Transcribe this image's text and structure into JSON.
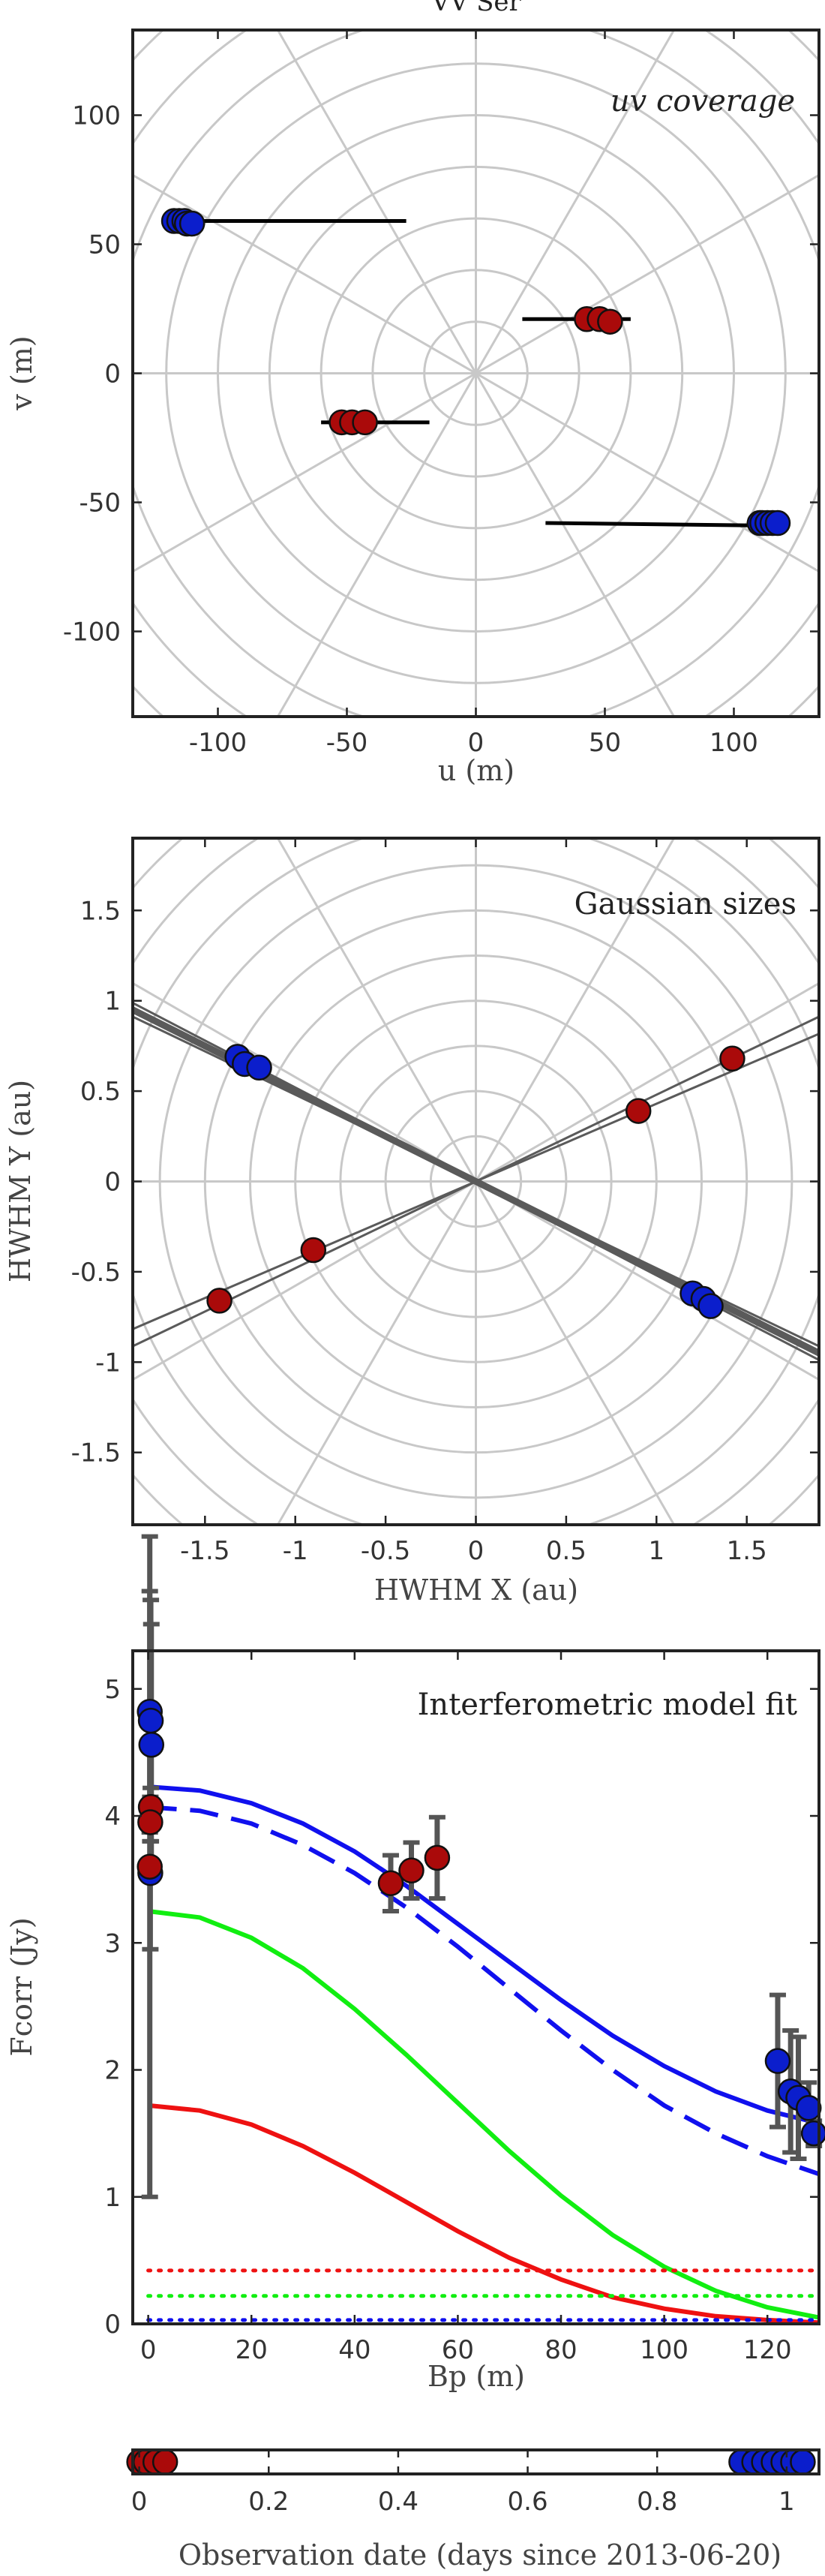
{
  "figure_title": "VV Ser",
  "chart_data": [
    {
      "type": "scatter",
      "name": "uv-coverage",
      "annotation": "uv coverage",
      "xlabel": "u (m)",
      "ylabel": "v (m)",
      "xlim": [
        -133,
        133
      ],
      "ylim": [
        -133,
        133
      ],
      "xticks": [
        -100,
        -50,
        0,
        50,
        100
      ],
      "yticks": [
        -100,
        -50,
        0,
        50,
        100
      ],
      "xticklabels": [
        "-100",
        "-50",
        "0",
        "50",
        "100"
      ],
      "yticklabels": [
        "-100",
        "-50",
        "0",
        "50",
        "100"
      ],
      "polar_grid": {
        "radius_step": 20,
        "radius_max": 200,
        "angle_step_deg": 30
      },
      "tracks": [
        {
          "x1": -112,
          "y1": 59,
          "x2": -27,
          "y2": 59
        },
        {
          "x1": 27,
          "y1": -58,
          "x2": 112,
          "y2": -59
        },
        {
          "x1": 18,
          "y1": 21,
          "x2": 60,
          "y2": 21
        },
        {
          "x1": -60,
          "y1": -19,
          "x2": -18,
          "y2": -19
        }
      ],
      "series": [
        {
          "name": "blue",
          "color": "#0b1ecc",
          "points": [
            [
              -117,
              59
            ],
            [
              -115,
              59
            ],
            [
              -113,
              59
            ],
            [
              -112,
              58
            ],
            [
              -110,
              58
            ],
            [
              110,
              -58
            ],
            [
              111,
              -58
            ],
            [
              113,
              -58
            ],
            [
              115,
              -58
            ],
            [
              117,
              -58
            ]
          ]
        },
        {
          "name": "red",
          "color": "#aa0a0a",
          "points": [
            [
              43,
              21
            ],
            [
              48,
              21
            ],
            [
              52,
              20
            ],
            [
              -52,
              -19
            ],
            [
              -48,
              -19
            ],
            [
              -43,
              -19
            ]
          ]
        }
      ]
    },
    {
      "type": "scatter",
      "name": "gaussian-sizes",
      "annotation": "Gaussian sizes",
      "xlabel": "HWHM X (au)",
      "ylabel": "HWHM Y (au)",
      "xlim": [
        -1.9,
        1.9
      ],
      "ylim": [
        -1.9,
        1.9
      ],
      "xticks": [
        -1.5,
        -1,
        -0.5,
        0,
        0.5,
        1,
        1.5
      ],
      "yticks": [
        -1.5,
        -1,
        -0.5,
        0,
        0.5,
        1,
        1.5
      ],
      "xticklabels": [
        "-1.5",
        "-1",
        "-0.5",
        "0",
        "0.5",
        "1",
        "1.5"
      ],
      "yticklabels": [
        "-1.5",
        "-1",
        "-0.5",
        "0",
        "0.5",
        "1",
        "1.5"
      ],
      "polar_grid": {
        "radius_step": 0.25,
        "radius_max": 3,
        "angle_step_deg": 30
      },
      "lines": [
        {
          "slope": -0.5,
          "width": 9
        },
        {
          "slope": -0.48,
          "width": 3
        },
        {
          "slope": -0.52,
          "width": 3
        },
        {
          "slope": 0.43,
          "width": 3
        },
        {
          "slope": 0.48,
          "width": 3
        }
      ],
      "series": [
        {
          "name": "blue",
          "color": "#0b1ecc",
          "points": [
            [
              -1.32,
              0.69
            ],
            [
              -1.28,
              0.65
            ],
            [
              -1.2,
              0.63
            ],
            [
              1.2,
              -0.62
            ],
            [
              1.26,
              -0.65
            ],
            [
              1.3,
              -0.69
            ]
          ]
        },
        {
          "name": "red",
          "color": "#aa0a0a",
          "points": [
            [
              -1.42,
              -0.66
            ],
            [
              -0.9,
              -0.38
            ],
            [
              0.9,
              0.39
            ],
            [
              1.42,
              0.68
            ]
          ]
        }
      ]
    },
    {
      "type": "line",
      "name": "interferometric-model-fit",
      "annotation": "Interferometric model fit",
      "xlabel": "Bp (m)",
      "ylabel": "Fcorr (Jy)",
      "xlim": [
        -3,
        130
      ],
      "ylim": [
        0,
        5.3
      ],
      "xticks": [
        0,
        20,
        40,
        60,
        80,
        100,
        120
      ],
      "yticks": [
        0,
        1,
        2,
        3,
        4,
        5
      ],
      "xticklabels": [
        "0",
        "20",
        "40",
        "60",
        "80",
        "100",
        "120"
      ],
      "yticklabels": [
        "0",
        "1",
        "2",
        "3",
        "4",
        "5"
      ],
      "curves": [
        {
          "name": "blue-solid",
          "color": "#1010ee",
          "style": "solid",
          "points": [
            [
              0,
              4.23
            ],
            [
              10,
              4.2
            ],
            [
              20,
              4.1
            ],
            [
              30,
              3.94
            ],
            [
              40,
              3.72
            ],
            [
              50,
              3.45
            ],
            [
              60,
              3.15
            ],
            [
              70,
              2.85
            ],
            [
              80,
              2.55
            ],
            [
              90,
              2.27
            ],
            [
              100,
              2.03
            ],
            [
              110,
              1.83
            ],
            [
              120,
              1.68
            ],
            [
              130,
              1.58
            ]
          ]
        },
        {
          "name": "blue-dashed",
          "color": "#1010ee",
          "style": "dashed",
          "points": [
            [
              0,
              4.07
            ],
            [
              10,
              4.04
            ],
            [
              20,
              3.94
            ],
            [
              30,
              3.77
            ],
            [
              40,
              3.55
            ],
            [
              50,
              3.28
            ],
            [
              60,
              2.97
            ],
            [
              70,
              2.64
            ],
            [
              80,
              2.31
            ],
            [
              90,
              2.0
            ],
            [
              100,
              1.72
            ],
            [
              110,
              1.5
            ],
            [
              120,
              1.32
            ],
            [
              130,
              1.18
            ]
          ]
        },
        {
          "name": "green",
          "color": "#11ee11",
          "style": "solid",
          "points": [
            [
              0,
              3.25
            ],
            [
              10,
              3.2
            ],
            [
              20,
              3.04
            ],
            [
              30,
              2.8
            ],
            [
              40,
              2.48
            ],
            [
              50,
              2.12
            ],
            [
              60,
              1.74
            ],
            [
              70,
              1.36
            ],
            [
              80,
              1.01
            ],
            [
              90,
              0.7
            ],
            [
              100,
              0.45
            ],
            [
              110,
              0.26
            ],
            [
              120,
              0.13
            ],
            [
              130,
              0.05
            ]
          ]
        },
        {
          "name": "red",
          "color": "#ee1111",
          "style": "solid",
          "points": [
            [
              0,
              1.72
            ],
            [
              10,
              1.68
            ],
            [
              20,
              1.57
            ],
            [
              30,
              1.4
            ],
            [
              40,
              1.19
            ],
            [
              50,
              0.96
            ],
            [
              60,
              0.73
            ],
            [
              70,
              0.52
            ],
            [
              80,
              0.35
            ],
            [
              90,
              0.21
            ],
            [
              100,
              0.12
            ],
            [
              110,
              0.06
            ],
            [
              120,
              0.03
            ],
            [
              130,
              0.01
            ]
          ]
        },
        {
          "name": "red-dotted",
          "color": "#ee1111",
          "style": "dotted",
          "points": [
            [
              0,
              0.42
            ],
            [
              130,
              0.42
            ]
          ]
        },
        {
          "name": "green-dotted",
          "color": "#11ee11",
          "style": "dotted",
          "points": [
            [
              0,
              0.22
            ],
            [
              130,
              0.22
            ]
          ]
        },
        {
          "name": "blue-dotted",
          "color": "#1010ee",
          "style": "dotted",
          "points": [
            [
              0,
              0.03
            ],
            [
              130,
              0.03
            ]
          ]
        }
      ],
      "series": [
        {
          "name": "blue",
          "color": "#0b1ecc",
          "points": [
            [
              0.3,
              4.82,
              0.95
            ],
            [
              0.5,
              4.75,
              0.95
            ],
            [
              0.6,
              4.56,
              0.95
            ],
            [
              0.4,
              3.55,
              0.6
            ]
          ]
        },
        {
          "name": "red",
          "color": "#aa0a0a",
          "points": [
            [
              0.5,
              4.07,
              0.15
            ],
            [
              0.4,
              3.95,
              0.15
            ],
            [
              0.3,
              3.6,
              2.6
            ],
            [
              47,
              3.47,
              0.22
            ],
            [
              51,
              3.57,
              0.22
            ],
            [
              56,
              3.67,
              0.32
            ]
          ]
        },
        {
          "name": "blue",
          "color": "#0b1ecc",
          "points": [
            [
              122,
              2.07,
              0.52
            ],
            [
              124.5,
              1.83,
              0.48
            ],
            [
              126,
              1.78,
              0.48
            ],
            [
              128,
              1.7,
              0.2
            ],
            [
              129,
              1.5,
              0.1
            ]
          ]
        }
      ]
    },
    {
      "type": "scatter",
      "name": "observation-timeline",
      "xlabel": "Observation date (days since 2013-06-20)",
      "xlim": [
        -0.01,
        1.05
      ],
      "xticks": [
        0,
        0.2,
        0.4,
        0.6,
        0.8,
        1
      ],
      "xticklabels": [
        "0",
        "0.2",
        "0.4",
        "0.6",
        "0.8",
        "1"
      ],
      "series": [
        {
          "name": "red",
          "color": "#aa0a0a",
          "x": [
            0.0,
            0.01,
            0.025,
            0.04
          ]
        },
        {
          "name": "blue",
          "color": "#0b1ecc",
          "x": [
            0.93,
            0.95,
            0.965,
            0.98,
            0.995,
            1.01,
            1.025
          ]
        }
      ]
    }
  ]
}
